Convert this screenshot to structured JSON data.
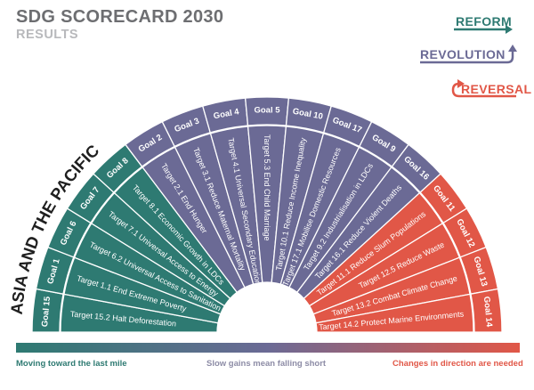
{
  "header": {
    "title": "SDG SCORECARD 2030",
    "subtitle": "RESULTS"
  },
  "legend": [
    {
      "label": "REFORM",
      "color": "#2e7a72",
      "arrow": "straight-arrow-icon"
    },
    {
      "label": "REVOLUTION",
      "color": "#6b6a95",
      "arrow": "u-turn-up-arrow-icon"
    },
    {
      "label": "REVERSAL",
      "color": "#e15747",
      "arrow": "u-turn-back-arrow-icon"
    }
  ],
  "chart_data": {
    "type": "semicircle-scorecard",
    "region": "ASIA AND THE PACIFIC",
    "colors": {
      "reform": "#2e7a72",
      "revolution": "#6b6a95",
      "reversal": "#e15747"
    },
    "segments": [
      {
        "goal": "Goal 15",
        "target": "Target 15.2 Halt Deforestation",
        "category": "reform"
      },
      {
        "goal": "Goal 1",
        "target": "Target 1.1 End Extreme Poverty",
        "category": "reform"
      },
      {
        "goal": "Goal 6",
        "target": "Target 6.2 Universal Access to Sanitation",
        "category": "reform"
      },
      {
        "goal": "Goal 7",
        "target": "Target 7.1 Universal Access to Energy",
        "category": "reform"
      },
      {
        "goal": "Goal 8",
        "target": "Target 8.1 Economic Growth in LDCs",
        "category": "reform"
      },
      {
        "goal": "Goal 2",
        "target": "Target 2.1 End Hunger",
        "category": "revolution"
      },
      {
        "goal": "Goal 3",
        "target": "Target 3.1 Reduce Maternal Mortality",
        "category": "revolution"
      },
      {
        "goal": "Goal 4",
        "target": "Target 4.1 Universal Secondary Education",
        "category": "revolution"
      },
      {
        "goal": "Goal 5",
        "target": "Target 5.3 End Child Marriage",
        "category": "revolution"
      },
      {
        "goal": "Goal 10",
        "target": "Target 10.1 Reduce Income Inequality",
        "category": "revolution"
      },
      {
        "goal": "Goal 17",
        "target": "Target 17.1 Mobilise Domestic Resources",
        "category": "revolution"
      },
      {
        "goal": "Goal 9",
        "target": "Target 9.2 Industrialisation in LDCs",
        "category": "revolution"
      },
      {
        "goal": "Goal 16",
        "target": "Target 16.1 Reduce Violent Deaths",
        "category": "revolution"
      },
      {
        "goal": "Goal 11",
        "target": "Target 11.1 Reduce Slum Populations",
        "category": "reversal"
      },
      {
        "goal": "Goal 12",
        "target": "Target 12.5 Reduce Waste",
        "category": "reversal"
      },
      {
        "goal": "Goal 13",
        "target": "Target 13.2 Combat Climate Change",
        "category": "reversal"
      },
      {
        "goal": "Goal 14",
        "target": "Target 14.2 Protect Marine Environments",
        "category": "reversal"
      }
    ]
  },
  "footer": {
    "left": "Moving toward the last mile",
    "center": "Slow gains mean falling short",
    "right": "Changes in direction are needed"
  }
}
